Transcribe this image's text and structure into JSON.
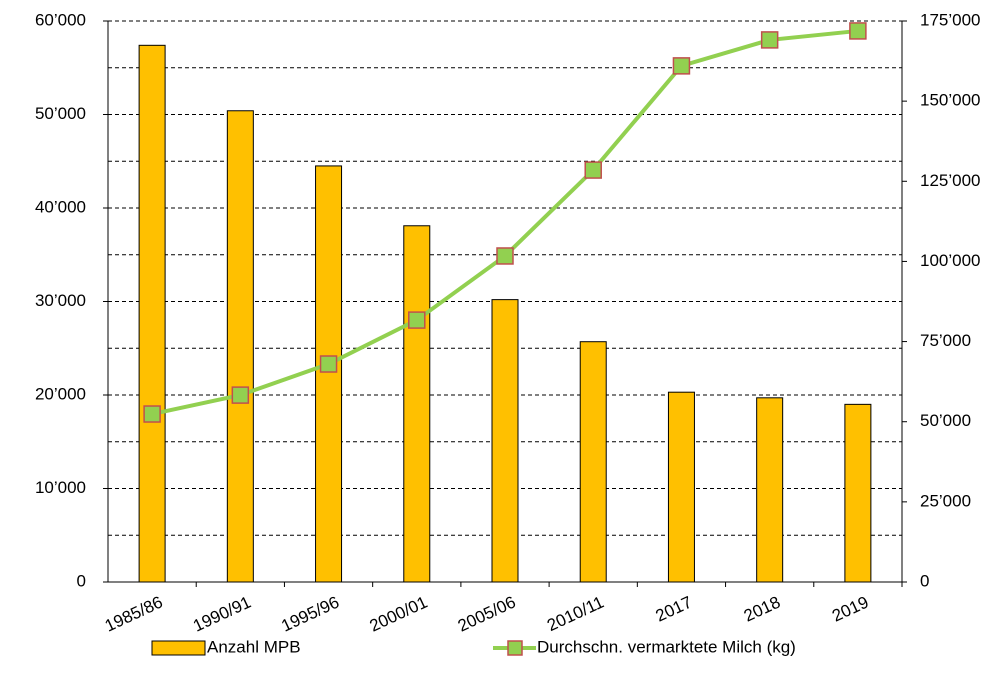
{
  "chart_data": {
    "type": "bar_line",
    "categories": [
      "1985/86",
      "1990/91",
      "1995/96",
      "2000/01",
      "2005/06",
      "2010/11",
      "2017",
      "2018",
      "2019"
    ],
    "series": [
      {
        "name": "Anzahl MPB",
        "type": "bar",
        "color": "#FFC000",
        "values": [
          57400,
          50400,
          44500,
          38100,
          30200,
          25700,
          20300,
          19700,
          19000
        ]
      },
      {
        "name": "Durchschn. vermarktete Milch (kg)",
        "type": "line",
        "axis": "y2",
        "color": "#92D050",
        "marker_edge_color": "#C0504D",
        "values": [
          52400,
          58300,
          68000,
          81700,
          101700,
          128500,
          161000,
          169100,
          171900
        ]
      }
    ],
    "ylim": [
      0,
      60000
    ],
    "yticks": [
      0,
      {
        "value": 10000,
        "label": "10’000"
      },
      {
        "value": 20000,
        "label": "20’000"
      },
      {
        "value": 30000,
        "label": "30’000"
      },
      {
        "value": 40000,
        "label": "40’000"
      },
      {
        "value": 50000,
        "label": "50’000"
      },
      {
        "value": 60000,
        "label": "60’000"
      }
    ],
    "y_minor_ticks": [
      5000,
      15000,
      25000,
      35000,
      45000,
      55000
    ],
    "y2lim": [
      0,
      175000
    ],
    "y2ticks": [
      0,
      {
        "value": 25000,
        "label": "25’000"
      },
      {
        "value": 50000,
        "label": "50’000"
      },
      {
        "value": 75000,
        "label": "75’000"
      },
      {
        "value": 100000,
        "label": "100’000"
      },
      {
        "value": 125000,
        "label": "125’000"
      },
      {
        "value": 150000,
        "label": "150’000"
      },
      {
        "value": 175000,
        "label": "175’000"
      }
    ],
    "grid": true,
    "legend": "bottom"
  }
}
